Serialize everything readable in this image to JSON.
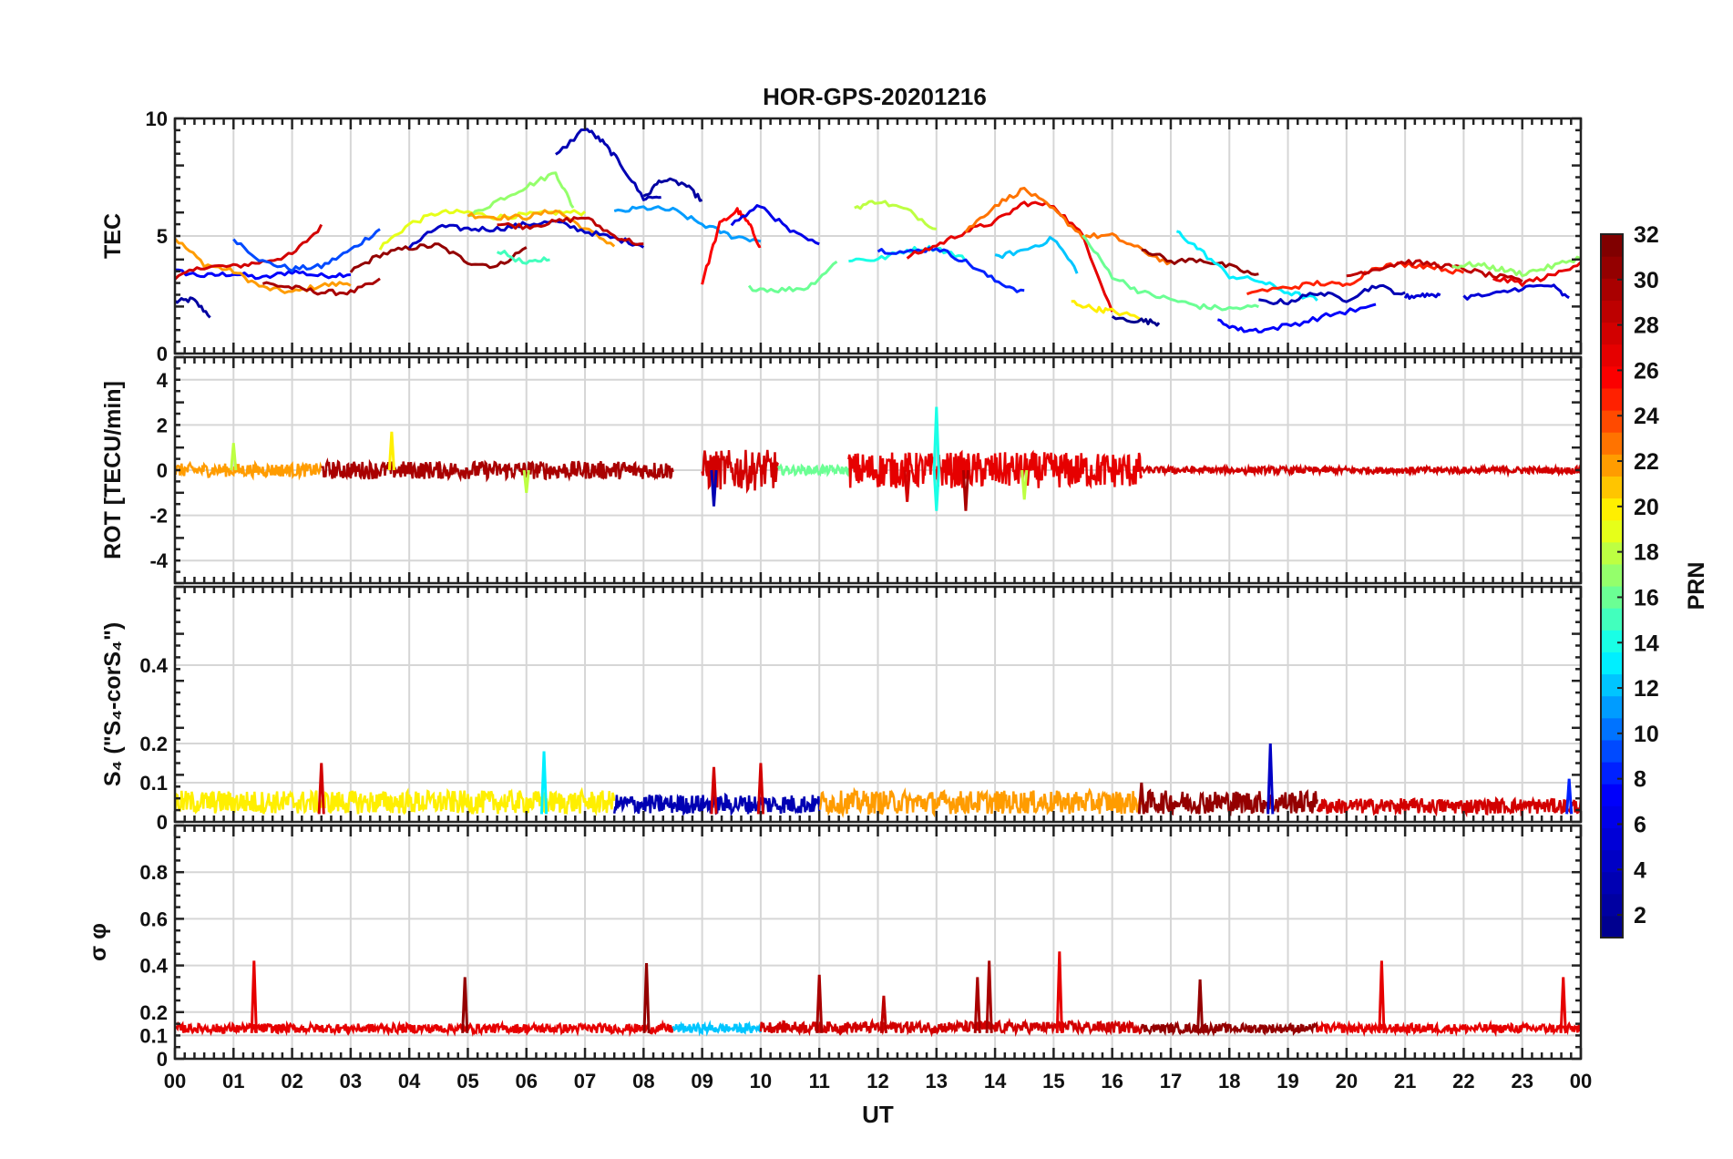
{
  "colormap": {
    "name": "jet",
    "stops": [
      "#00008f",
      "#0000ff",
      "#00ffff",
      "#ffff00",
      "#ff0000",
      "#800000"
    ]
  },
  "chart_data": [
    {
      "type": "line",
      "title": "HOR-GPS-20201216",
      "ylabel": "TEC",
      "xlim": [
        0,
        24
      ],
      "ylim": [
        0,
        10
      ],
      "yticks": [
        0,
        5,
        10
      ],
      "ytick_labels": [
        "0",
        "5",
        "10"
      ],
      "xticks": [
        0,
        1,
        2,
        3,
        4,
        5,
        6,
        7,
        8,
        9,
        10,
        11,
        12,
        13,
        14,
        15,
        16,
        17,
        18,
        19,
        20,
        21,
        22,
        23,
        24
      ],
      "grid": true,
      "series": [
        {
          "prn": 2,
          "x": [
            0.0,
            0.3,
            0.6
          ],
          "y": [
            2.2,
            2.3,
            1.6
          ]
        },
        {
          "prn": 7,
          "x": [
            0.0,
            0.5,
            1.0,
            1.5,
            2.0,
            2.5,
            3.0
          ],
          "y": [
            3.5,
            3.3,
            3.4,
            3.2,
            3.5,
            3.3,
            3.4
          ]
        },
        {
          "prn": 22,
          "x": [
            0.0,
            0.5,
            1.0,
            1.5,
            2.0,
            2.5,
            3.0
          ],
          "y": [
            4.9,
            3.8,
            3.5,
            2.8,
            2.6,
            2.9,
            3.0
          ]
        },
        {
          "prn": 28,
          "x": [
            0.0,
            0.5,
            1.0,
            1.5,
            2.0,
            2.5
          ],
          "y": [
            3.2,
            3.7,
            3.7,
            3.9,
            4.2,
            5.4
          ]
        },
        {
          "prn": 9,
          "x": [
            1.0,
            1.5,
            2.0,
            2.5,
            3.0,
            3.5
          ],
          "y": [
            4.9,
            3.9,
            3.6,
            3.7,
            4.4,
            5.3
          ]
        },
        {
          "prn": 30,
          "x": [
            1.5,
            2.0,
            2.5,
            3.0,
            3.5
          ],
          "y": [
            3.0,
            2.8,
            2.6,
            2.6,
            3.1
          ]
        },
        {
          "prn": 31,
          "x": [
            3.0,
            3.5,
            4.0,
            4.5,
            5.0,
            5.5,
            6.0
          ],
          "y": [
            3.5,
            4.2,
            4.5,
            4.6,
            3.9,
            3.7,
            4.5
          ]
        },
        {
          "prn": 19,
          "x": [
            3.5,
            4.0,
            4.5,
            5.0,
            5.5,
            6.0,
            6.5,
            7.0
          ],
          "y": [
            4.5,
            5.5,
            6.0,
            6.0,
            5.8,
            5.9,
            6.0,
            6.0
          ]
        },
        {
          "prn": 15,
          "x": [
            5.5,
            6.0,
            6.4
          ],
          "y": [
            4.4,
            3.8,
            4.1
          ]
        },
        {
          "prn": 17,
          "x": [
            5.0,
            5.5,
            6.0,
            6.5,
            6.8
          ],
          "y": [
            5.8,
            6.5,
            7.1,
            7.7,
            6.2
          ]
        },
        {
          "prn": 22,
          "x": [
            5.0,
            5.5,
            6.0,
            6.5,
            7.0,
            7.5
          ],
          "y": [
            5.9,
            5.8,
            5.8,
            6.1,
            5.3,
            4.6
          ]
        },
        {
          "prn": 4,
          "x": [
            4.0,
            4.5,
            5.0,
            5.5,
            6.0,
            6.5,
            7.0,
            7.5,
            8.0
          ],
          "y": [
            4.5,
            5.4,
            5.3,
            5.3,
            5.5,
            5.6,
            5.2,
            4.9,
            4.6
          ]
        },
        {
          "prn": 29,
          "x": [
            5.5,
            6.0,
            6.5,
            7.0,
            7.5,
            8.0
          ],
          "y": [
            5.5,
            5.4,
            5.6,
            5.8,
            5.0,
            4.6
          ]
        },
        {
          "prn": 3,
          "x": [
            6.5,
            7.0,
            7.3,
            7.6,
            8.0,
            8.3
          ],
          "y": [
            8.4,
            9.6,
            9.0,
            8.1,
            6.6,
            6.7
          ]
        },
        {
          "prn": 2,
          "x": [
            8.0,
            8.3,
            8.7,
            9.0
          ],
          "y": [
            6.6,
            7.4,
            7.2,
            6.5
          ]
        },
        {
          "prn": 11,
          "x": [
            7.5,
            8.0,
            8.5,
            9.0,
            9.5,
            10.0
          ],
          "y": [
            6.0,
            6.2,
            6.1,
            5.5,
            5.0,
            4.8
          ]
        },
        {
          "prn": 26,
          "x": [
            9.0,
            9.3,
            9.6,
            9.8,
            10.0
          ],
          "y": [
            3.0,
            5.5,
            6.1,
            5.5,
            4.5
          ]
        },
        {
          "prn": 6,
          "x": [
            9.5,
            10.0,
            10.5,
            11.0
          ],
          "y": [
            5.5,
            6.3,
            5.2,
            4.6
          ]
        },
        {
          "prn": 16,
          "x": [
            9.8,
            10.3,
            10.8,
            11.3
          ],
          "y": [
            2.8,
            2.7,
            2.8,
            3.9
          ]
        },
        {
          "prn": 14,
          "x": [
            11.5,
            12.0,
            12.5,
            13.0,
            13.5
          ],
          "y": [
            4.0,
            4.0,
            4.4,
            4.5,
            4.0
          ]
        },
        {
          "prn": 18,
          "x": [
            11.6,
            12.0,
            12.5,
            13.0
          ],
          "y": [
            6.2,
            6.5,
            6.1,
            5.3
          ]
        },
        {
          "prn": 8,
          "x": [
            12.0,
            12.5,
            13.0,
            13.5,
            14.0,
            14.5
          ],
          "y": [
            4.4,
            4.3,
            4.5,
            3.9,
            3.1,
            2.6
          ]
        },
        {
          "prn": 27,
          "x": [
            12.5,
            13.0,
            13.5,
            14.0,
            14.5,
            15.0,
            15.5,
            16.0
          ],
          "y": [
            4.1,
            4.6,
            5.2,
            5.6,
            6.4,
            6.3,
            5.0,
            1.8
          ]
        },
        {
          "prn": 23,
          "x": [
            13.5,
            14.0,
            14.5,
            15.0,
            15.5,
            16.0,
            16.5,
            17.0
          ],
          "y": [
            5.2,
            6.3,
            7.0,
            6.1,
            5.0,
            5.0,
            4.4,
            3.8
          ]
        },
        {
          "prn": 12,
          "x": [
            14.0,
            14.5,
            15.0,
            15.4
          ],
          "y": [
            4.1,
            4.4,
            4.9,
            3.5
          ]
        },
        {
          "prn": 16,
          "x": [
            15.5,
            16.0,
            16.5,
            17.0,
            17.5,
            18.0,
            18.5
          ],
          "y": [
            5.0,
            3.3,
            2.6,
            2.3,
            2.0,
            1.9,
            2.0
          ]
        },
        {
          "prn": 20,
          "x": [
            15.3,
            15.7,
            16.0,
            16.5
          ],
          "y": [
            2.2,
            1.9,
            1.8,
            1.5
          ]
        },
        {
          "prn": 1,
          "x": [
            16.0,
            16.5,
            16.8
          ],
          "y": [
            1.5,
            1.4,
            1.3
          ]
        },
        {
          "prn": 31,
          "x": [
            16.5,
            17.0,
            17.5,
            18.0,
            18.5
          ],
          "y": [
            4.5,
            3.9,
            4.0,
            3.7,
            3.3
          ]
        },
        {
          "prn": 13,
          "x": [
            17.1,
            17.5,
            18.0,
            18.5,
            19.0,
            19.5
          ],
          "y": [
            5.2,
            4.4,
            3.3,
            3.1,
            2.6,
            2.3
          ]
        },
        {
          "prn": 3,
          "x": [
            18.5,
            19.0,
            19.5,
            20.0,
            20.5,
            21.0
          ],
          "y": [
            2.2,
            2.2,
            2.6,
            2.3,
            2.9,
            2.5
          ]
        },
        {
          "prn": 7,
          "x": [
            17.8,
            18.2,
            18.6,
            19.2,
            19.8,
            20.5
          ],
          "y": [
            1.4,
            1.0,
            1.0,
            1.3,
            1.7,
            2.0
          ]
        },
        {
          "prn": 25,
          "x": [
            18.3,
            19.0,
            19.5,
            20.0,
            20.5,
            21.0,
            21.5,
            22.0
          ],
          "y": [
            2.6,
            2.8,
            3.0,
            2.9,
            3.7,
            3.8,
            3.7,
            3.4
          ]
        },
        {
          "prn": 29,
          "x": [
            20.0,
            20.5,
            21.0,
            21.5,
            22.0,
            22.5,
            23.0
          ],
          "y": [
            3.3,
            3.6,
            3.9,
            3.8,
            3.6,
            3.3,
            3.1
          ]
        },
        {
          "prn": 5,
          "x": [
            21.0,
            21.3,
            21.6
          ],
          "y": [
            2.4,
            2.5,
            2.5
          ]
        },
        {
          "prn": 17,
          "x": [
            21.8,
            22.2,
            22.6,
            23.0,
            23.5,
            24.0
          ],
          "y": [
            3.7,
            3.8,
            3.6,
            3.4,
            3.7,
            4.1
          ]
        },
        {
          "prn": 5,
          "x": [
            22.0,
            22.5,
            23.0,
            23.5,
            23.8
          ],
          "y": [
            2.4,
            2.5,
            2.8,
            2.9,
            2.3
          ]
        },
        {
          "prn": 27,
          "x": [
            22.5,
            23.0,
            23.5,
            24.0
          ],
          "y": [
            3.2,
            3.0,
            3.3,
            3.9
          ]
        }
      ]
    },
    {
      "type": "line",
      "ylabel": "ROT [TECU/min]",
      "xlim": [
        0,
        24
      ],
      "ylim": [
        -5,
        5
      ],
      "yticks": [
        -4,
        -2,
        0,
        2,
        4
      ],
      "ytick_labels": [
        "-4",
        "-2",
        "0",
        "2",
        "4"
      ],
      "grid": true,
      "baseline": 0,
      "spikes": [
        {
          "x": 3.7,
          "y": 1.7,
          "prn": 20
        },
        {
          "x": 9.2,
          "y": -1.6,
          "prn": 3
        },
        {
          "x": 12.5,
          "y": -1.4,
          "prn": 28
        },
        {
          "x": 13.0,
          "y": 2.8,
          "prn": 14
        },
        {
          "x": 13.0,
          "y": -1.8,
          "prn": 14
        },
        {
          "x": 13.5,
          "y": -1.8,
          "prn": 30
        },
        {
          "x": 14.5,
          "y": -1.3,
          "prn": 18
        },
        {
          "x": 6.0,
          "y": -1.0,
          "prn": 18
        },
        {
          "x": 1.0,
          "y": 1.2,
          "prn": 18
        }
      ],
      "bursts": [
        {
          "x0": 0.0,
          "x1": 2.5,
          "amp": 0.3,
          "prn": 22
        },
        {
          "x0": 2.5,
          "x1": 8.5,
          "amp": 0.4,
          "prn": 30
        },
        {
          "x0": 9.0,
          "x1": 10.3,
          "amp": 0.9,
          "prn": 28
        },
        {
          "x0": 10.3,
          "x1": 11.5,
          "amp": 0.2,
          "prn": 16
        },
        {
          "x0": 11.5,
          "x1": 16.5,
          "amp": 0.8,
          "prn": 27
        },
        {
          "x0": 16.5,
          "x1": 24.0,
          "amp": 0.15,
          "prn": 28
        }
      ]
    },
    {
      "type": "line",
      "ylabel": "S₄ (\"S₄-corS₄\")",
      "xlim": [
        0,
        24
      ],
      "ylim": [
        0,
        0.6
      ],
      "yticks": [
        0,
        0.1,
        0.2,
        0.4
      ],
      "ytick_labels": [
        "0",
        "0.1",
        "0.2",
        "0.4"
      ],
      "grid": true,
      "baseline": 0.02,
      "spikes": [
        {
          "x": 2.5,
          "y": 0.15,
          "prn": 28
        },
        {
          "x": 6.3,
          "y": 0.18,
          "prn": 13
        },
        {
          "x": 9.2,
          "y": 0.14,
          "prn": 28
        },
        {
          "x": 10.0,
          "y": 0.15,
          "prn": 28
        },
        {
          "x": 18.7,
          "y": 0.2,
          "prn": 4
        },
        {
          "x": 16.5,
          "y": 0.1,
          "prn": 31
        },
        {
          "x": 23.8,
          "y": 0.11,
          "prn": 8
        }
      ],
      "bursts": [
        {
          "x0": 0.0,
          "x1": 7.5,
          "amp": 0.06,
          "prn": 20
        },
        {
          "x0": 7.5,
          "x1": 11.0,
          "amp": 0.05,
          "prn": 3
        },
        {
          "x0": 11.0,
          "x1": 16.5,
          "amp": 0.06,
          "prn": 22
        },
        {
          "x0": 16.5,
          "x1": 19.5,
          "amp": 0.06,
          "prn": 31
        },
        {
          "x0": 19.5,
          "x1": 24.0,
          "amp": 0.04,
          "prn": 28
        }
      ]
    },
    {
      "type": "line",
      "ylabel": "σ φ",
      "xlim": [
        0,
        24
      ],
      "ylim": [
        0,
        1
      ],
      "yticks": [
        0,
        0.1,
        0.2,
        0.4,
        0.6,
        0.8
      ],
      "ytick_labels": [
        "0",
        "0.1",
        "0.2",
        "0.4",
        "0.6",
        "0.8"
      ],
      "xlabel": "UT",
      "xtick_labels": [
        "00",
        "01",
        "02",
        "03",
        "04",
        "05",
        "06",
        "07",
        "08",
        "09",
        "10",
        "11",
        "12",
        "13",
        "14",
        "15",
        "16",
        "17",
        "18",
        "19",
        "20",
        "21",
        "22",
        "23",
        "00"
      ],
      "grid": true,
      "baseline": 0.11,
      "spikes": [
        {
          "x": 1.35,
          "y": 0.42,
          "prn": 27
        },
        {
          "x": 4.95,
          "y": 0.35,
          "prn": 31
        },
        {
          "x": 8.05,
          "y": 0.41,
          "prn": 31
        },
        {
          "x": 11.0,
          "y": 0.36,
          "prn": 30
        },
        {
          "x": 12.1,
          "y": 0.27,
          "prn": 29
        },
        {
          "x": 13.7,
          "y": 0.35,
          "prn": 30
        },
        {
          "x": 13.9,
          "y": 0.42,
          "prn": 30
        },
        {
          "x": 15.1,
          "y": 0.46,
          "prn": 27
        },
        {
          "x": 17.5,
          "y": 0.34,
          "prn": 31
        },
        {
          "x": 20.6,
          "y": 0.42,
          "prn": 27
        },
        {
          "x": 23.7,
          "y": 0.35,
          "prn": 27
        }
      ],
      "bursts": [
        {
          "x0": 0.0,
          "x1": 8.5,
          "amp": 0.04,
          "prn": 27
        },
        {
          "x0": 8.5,
          "x1": 10.0,
          "amp": 0.04,
          "prn": 12
        },
        {
          "x0": 10.0,
          "x1": 16.5,
          "amp": 0.05,
          "prn": 28
        },
        {
          "x0": 16.5,
          "x1": 19.5,
          "amp": 0.04,
          "prn": 31
        },
        {
          "x0": 19.5,
          "x1": 24.0,
          "amp": 0.04,
          "prn": 27
        }
      ]
    }
  ],
  "colorbar": {
    "label": "PRN",
    "range": [
      1,
      32
    ],
    "ticks": [
      2,
      4,
      6,
      8,
      10,
      12,
      14,
      16,
      18,
      20,
      22,
      24,
      26,
      28,
      30,
      32
    ]
  }
}
